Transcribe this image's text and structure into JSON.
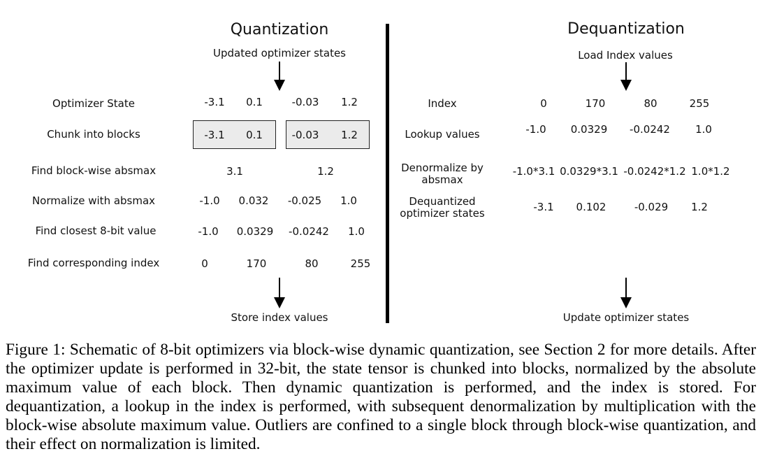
{
  "left": {
    "title": "Quantization",
    "input_label": "Updated optimizer states",
    "output_label": "Store index values",
    "rows": [
      {
        "label": "Optimizer State",
        "values": [
          "-3.1",
          "0.1",
          "-0.03",
          "1.2"
        ]
      },
      {
        "label": "Chunk into blocks",
        "values": [
          "-3.1",
          "0.1",
          "-0.03",
          "1.2"
        ]
      },
      {
        "label": "Find block-wise absmax",
        "values": [
          "3.1",
          "1.2"
        ]
      },
      {
        "label": "Normalize with absmax",
        "values": [
          "-1.0",
          "0.032",
          "-0.025",
          "1.0"
        ]
      },
      {
        "label": "Find closest 8-bit value",
        "values": [
          "-1.0",
          "0.0329",
          "-0.0242",
          "1.0"
        ]
      },
      {
        "label": "Find corresponding index",
        "values": [
          "0",
          "170",
          "80",
          "255"
        ]
      }
    ]
  },
  "right": {
    "title": "Dequantization",
    "input_label": "Load Index values",
    "output_label": "Update optimizer states",
    "rows": [
      {
        "label": "Index",
        "values": [
          "0",
          "170",
          "80",
          "255"
        ]
      },
      {
        "label": "Lookup values",
        "values": [
          "-1.0",
          "0.0329",
          "-0.0242",
          "1.0"
        ]
      },
      {
        "label_lines": [
          "Denormalize by",
          "absmax"
        ],
        "values": [
          "-1.0*3.1",
          "0.0329*3.1",
          "-0.0242*1.2",
          "1.0*1.2"
        ]
      },
      {
        "label_lines": [
          "Dequantized",
          "optimizer states"
        ],
        "values": [
          "-3.1",
          "0.102",
          "-0.029",
          "1.2"
        ]
      }
    ]
  },
  "caption": "Figure 1: Schematic of 8-bit optimizers via block-wise dynamic quantization, see Section 2 for more details. After the optimizer update is performed in 32-bit, the state tensor is chunked into blocks, normalized by the absolute maximum value of each block. Then dynamic quantization is performed, and the index is stored. For dequantization, a lookup in the index is performed, with subsequent denormalization by multiplication with the block-wise absolute maximum value. Outliers are confined to a single block through block-wise quantization, and their effect on normalization is limited."
}
